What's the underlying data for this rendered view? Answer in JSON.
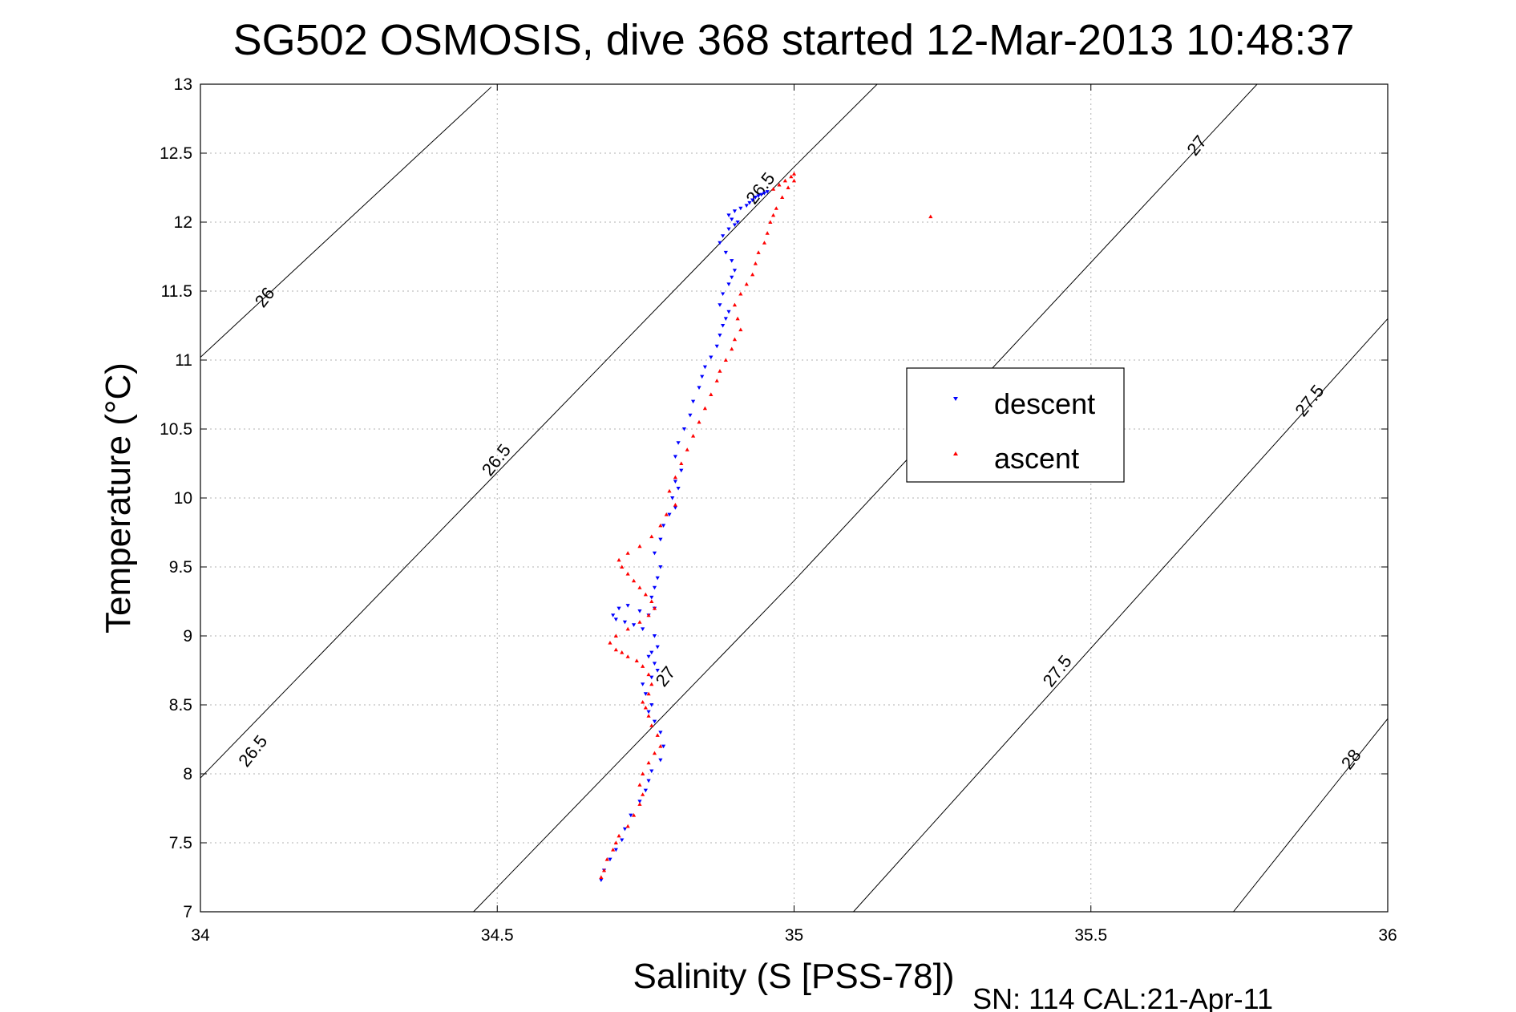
{
  "chart_data": {
    "type": "scatter",
    "title": "SG502 OSMOSIS, dive 368 started 12-Mar-2013 10:48:37",
    "xlabel": "Salinity (S [PSS-78])",
    "ylabel": "Temperature (°C)",
    "footnote": "SN: 114  CAL:21-Apr-11",
    "xlim": [
      34,
      36
    ],
    "ylim": [
      7,
      13
    ],
    "grid": true,
    "x_ticks": [
      34,
      34.5,
      35,
      35.5,
      36
    ],
    "x_tick_labels": [
      "34",
      "34.5",
      "35",
      "35.5",
      "36"
    ],
    "y_ticks": [
      7,
      7.5,
      8,
      8.5,
      9,
      9.5,
      10,
      10.5,
      11,
      11.5,
      12,
      12.5,
      13
    ],
    "y_tick_labels": [
      "7",
      "7.5",
      "8",
      "8.5",
      "9",
      "9.5",
      "10",
      "10.5",
      "11",
      "11.5",
      "12",
      "12.5",
      "13"
    ],
    "legend": {
      "position": "center-right",
      "entries": [
        "descent",
        "ascent"
      ]
    },
    "series_colors": {
      "descent": "#0000ff",
      "ascent": "#ff0000",
      "contour": "#000000"
    },
    "density_contours": [
      {
        "label": "26",
        "points": [
          [
            34,
            11.02
          ],
          [
            34.49,
            12.98
          ]
        ]
      },
      {
        "label": "26.5",
        "points": [
          [
            34,
            7.97
          ],
          [
            35,
            12.4
          ],
          [
            35.14,
            13
          ]
        ]
      },
      {
        "label": "27",
        "points": [
          [
            34.46,
            7
          ],
          [
            35,
            9.4
          ],
          [
            35.78,
            13
          ]
        ]
      },
      {
        "label": "27.5",
        "points": [
          [
            35.1,
            7
          ],
          [
            36,
            11.3
          ]
        ]
      },
      {
        "label": "28",
        "points": [
          [
            35.74,
            7
          ],
          [
            36,
            8.4
          ]
        ]
      }
    ],
    "contour_labels": [
      {
        "text": "26",
        "x": 34.11,
        "y": 11.45,
        "angle": -52
      },
      {
        "text": "26.5",
        "x": 34.09,
        "y": 8.16,
        "angle": -52
      },
      {
        "text": "26.5",
        "x": 34.5,
        "y": 10.27,
        "angle": -52
      },
      {
        "text": "26.5",
        "x": 34.945,
        "y": 12.24,
        "angle": -52
      },
      {
        "text": "27",
        "x": 34.785,
        "y": 8.7,
        "angle": -52
      },
      {
        "text": "27",
        "x": 35.68,
        "y": 12.55,
        "angle": -52
      },
      {
        "text": "27.5",
        "x": 35.445,
        "y": 8.74,
        "angle": -52
      },
      {
        "text": "27.5",
        "x": 35.87,
        "y": 10.7,
        "angle": -52
      },
      {
        "text": "28",
        "x": 35.94,
        "y": 8.1,
        "angle": -52
      }
    ],
    "series": [
      {
        "name": "descent",
        "marker": "triangle-down",
        "x": [
          34.675,
          34.68,
          34.69,
          34.7,
          34.71,
          34.715,
          34.725,
          34.74,
          34.75,
          34.755,
          34.76,
          34.775,
          34.78,
          34.775,
          34.765,
          34.755,
          34.76,
          34.75,
          34.745,
          34.76,
          34.77,
          34.765,
          34.755,
          34.76,
          34.77,
          34.765,
          34.745,
          34.73,
          34.715,
          34.7,
          34.695,
          34.705,
          34.72,
          34.74,
          34.755,
          34.765,
          34.76,
          34.765,
          34.77,
          34.775,
          34.765,
          34.775,
          34.78,
          34.79,
          34.8,
          34.795,
          34.805,
          34.8,
          34.81,
          34.8,
          34.805,
          34.815,
          34.825,
          34.83,
          34.84,
          34.845,
          34.85,
          34.86,
          34.87,
          34.875,
          34.88,
          34.885,
          34.89,
          34.875,
          34.88,
          34.89,
          34.895,
          34.9,
          34.895,
          34.885,
          34.875,
          34.88,
          34.89,
          34.9,
          34.905,
          34.895,
          34.89,
          34.9,
          34.91,
          34.92,
          34.925,
          34.93,
          34.935,
          34.94,
          34.945,
          34.95,
          34.955
        ],
        "y": [
          7.23,
          7.3,
          7.38,
          7.45,
          7.52,
          7.6,
          7.7,
          7.8,
          7.88,
          7.95,
          8.02,
          8.1,
          8.2,
          8.3,
          8.38,
          8.45,
          8.5,
          8.58,
          8.65,
          8.7,
          8.75,
          8.8,
          8.85,
          8.88,
          8.92,
          9.0,
          9.05,
          9.08,
          9.1,
          9.12,
          9.15,
          9.2,
          9.22,
          9.18,
          9.15,
          9.2,
          9.28,
          9.35,
          9.42,
          9.5,
          9.6,
          9.7,
          9.8,
          9.88,
          9.93,
          10.0,
          10.07,
          10.12,
          10.2,
          10.3,
          10.4,
          10.5,
          10.6,
          10.7,
          10.8,
          10.88,
          10.95,
          11.02,
          11.1,
          11.18,
          11.25,
          11.3,
          11.35,
          11.4,
          11.48,
          11.55,
          11.6,
          11.65,
          11.72,
          11.78,
          11.85,
          11.9,
          11.95,
          11.98,
          12.0,
          12.02,
          12.05,
          12.08,
          12.1,
          12.12,
          12.14,
          12.16,
          12.18,
          12.19,
          12.2,
          12.21,
          12.22
        ]
      },
      {
        "name": "ascent",
        "marker": "triangle-up",
        "x": [
          34.675,
          34.68,
          34.685,
          34.695,
          34.7,
          34.705,
          34.72,
          34.73,
          34.74,
          34.745,
          34.74,
          34.745,
          34.755,
          34.765,
          34.775,
          34.77,
          34.76,
          34.755,
          34.75,
          34.745,
          34.755,
          34.76,
          34.755,
          34.745,
          34.735,
          34.72,
          34.71,
          34.7,
          34.69,
          34.7,
          34.72,
          34.74,
          34.755,
          34.765,
          34.76,
          34.75,
          34.74,
          34.73,
          34.72,
          34.71,
          34.705,
          34.72,
          34.74,
          34.76,
          34.775,
          34.785,
          34.8,
          34.79,
          34.8,
          34.81,
          34.82,
          34.83,
          34.84,
          34.85,
          34.86,
          34.87,
          34.875,
          34.885,
          34.895,
          34.9,
          34.91,
          34.905,
          34.9,
          34.91,
          34.92,
          34.93,
          34.935,
          34.94,
          34.95,
          34.955,
          34.96,
          34.965,
          34.97,
          34.98,
          34.99,
          35.0,
          35.0,
          34.995,
          34.985,
          34.975,
          34.965,
          35.23
        ],
        "y": [
          7.25,
          7.3,
          7.38,
          7.45,
          7.5,
          7.55,
          7.62,
          7.7,
          7.78,
          7.85,
          7.92,
          8.0,
          8.08,
          8.15,
          8.2,
          8.28,
          8.35,
          8.42,
          8.48,
          8.52,
          8.58,
          8.65,
          8.72,
          8.78,
          8.82,
          8.85,
          8.88,
          8.9,
          8.95,
          9.0,
          9.05,
          9.1,
          9.15,
          9.2,
          9.25,
          9.3,
          9.35,
          9.4,
          9.45,
          9.5,
          9.55,
          9.6,
          9.65,
          9.72,
          9.8,
          9.88,
          9.95,
          10.05,
          10.15,
          10.25,
          10.35,
          10.45,
          10.55,
          10.65,
          10.75,
          10.85,
          10.92,
          11.0,
          11.08,
          11.15,
          11.22,
          11.3,
          11.4,
          11.48,
          11.55,
          11.62,
          11.7,
          11.78,
          11.85,
          11.92,
          12.0,
          12.05,
          12.1,
          12.18,
          12.25,
          12.3,
          12.35,
          12.33,
          12.3,
          12.27,
          12.24,
          12.04
        ]
      }
    ]
  }
}
